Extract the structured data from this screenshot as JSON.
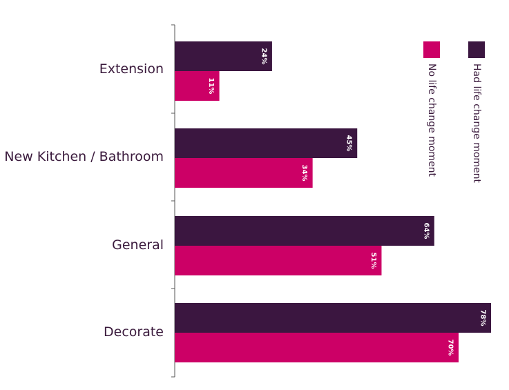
{
  "chart_data": {
    "type": "bar",
    "orientation": "horizontal",
    "categories": [
      "Extension",
      "New Kitchen / Bathroom",
      "General",
      "Decorate"
    ],
    "series": [
      {
        "name": "Had life change moment",
        "values": [
          24,
          45,
          64,
          78
        ],
        "labels": [
          "24%",
          "45%",
          "64%",
          "78%"
        ],
        "color": "#3b1640"
      },
      {
        "name": "No life change moment",
        "values": [
          11,
          34,
          51,
          70
        ],
        "labels": [
          "11%",
          "34%",
          "51%",
          "70%"
        ],
        "color": "#cc0066"
      }
    ],
    "xlim": [
      0,
      78
    ],
    "grid": false,
    "legend_position": "top-right",
    "title": "",
    "xlabel": "",
    "ylabel": ""
  }
}
